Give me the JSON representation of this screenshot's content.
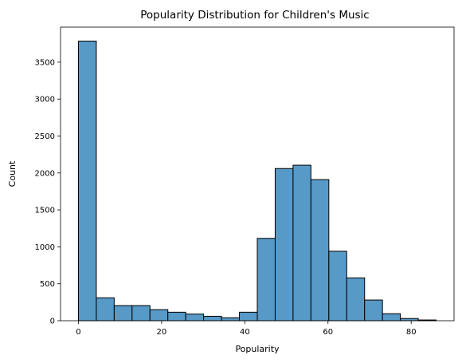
{
  "chart_data": {
    "type": "bar",
    "title": "Popularity Distribution for Children's Music",
    "xlabel": "Popularity",
    "ylabel": "Count",
    "bin_width": 4.3,
    "bins": [
      {
        "x0": 0.0,
        "x1": 4.3,
        "count": 3785
      },
      {
        "x0": 4.3,
        "x1": 8.6,
        "count": 310
      },
      {
        "x0": 8.6,
        "x1": 12.9,
        "count": 205
      },
      {
        "x0": 12.9,
        "x1": 17.2,
        "count": 205
      },
      {
        "x0": 17.2,
        "x1": 21.5,
        "count": 150
      },
      {
        "x0": 21.5,
        "x1": 25.8,
        "count": 115
      },
      {
        "x0": 25.8,
        "x1": 30.1,
        "count": 90
      },
      {
        "x0": 30.1,
        "x1": 34.4,
        "count": 60
      },
      {
        "x0": 34.4,
        "x1": 38.7,
        "count": 40
      },
      {
        "x0": 38.7,
        "x1": 43.0,
        "count": 115
      },
      {
        "x0": 43.0,
        "x1": 47.3,
        "count": 1115
      },
      {
        "x0": 47.3,
        "x1": 51.6,
        "count": 2060
      },
      {
        "x0": 51.6,
        "x1": 55.9,
        "count": 2105
      },
      {
        "x0": 55.9,
        "x1": 60.2,
        "count": 1910
      },
      {
        "x0": 60.2,
        "x1": 64.5,
        "count": 940
      },
      {
        "x0": 64.5,
        "x1": 68.8,
        "count": 580
      },
      {
        "x0": 68.8,
        "x1": 73.1,
        "count": 280
      },
      {
        "x0": 73.1,
        "x1": 77.4,
        "count": 95
      },
      {
        "x0": 77.4,
        "x1": 81.7,
        "count": 30
      },
      {
        "x0": 81.7,
        "x1": 86.0,
        "count": 10
      }
    ],
    "xlim": [
      -4.3,
      90.3
    ],
    "ylim": [
      0,
      3974
    ],
    "xticks": [
      0,
      20,
      40,
      60,
      80
    ],
    "yticks": [
      0,
      500,
      1000,
      1500,
      2000,
      2500,
      3000,
      3500
    ],
    "grid": false,
    "bar_color": "#5799c7",
    "edge_color": "#000000"
  }
}
